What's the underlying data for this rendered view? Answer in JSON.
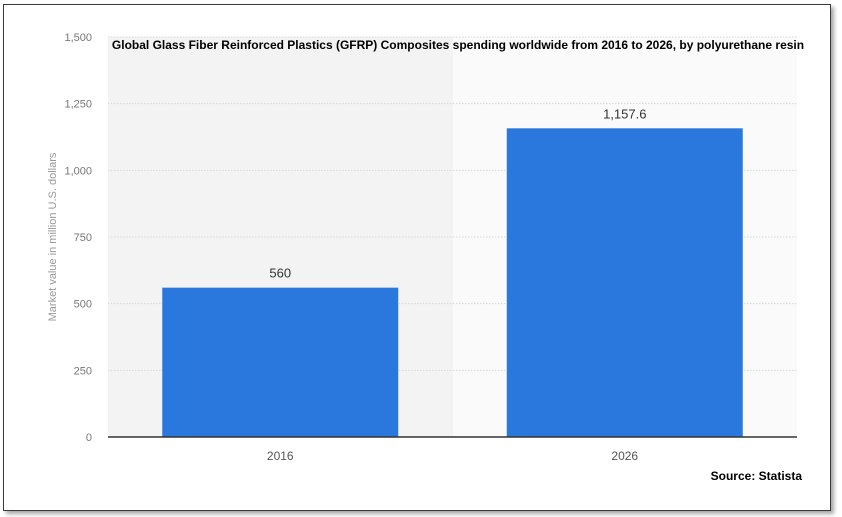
{
  "chart_data": {
    "type": "bar",
    "title": "Global Glass Fiber Reinforced Plastics (GFRP) Composites spending worldwide from 2016 to 2026, by polyurethane resin",
    "categories": [
      "2016",
      "2026"
    ],
    "values": [
      560,
      1157.6
    ],
    "value_labels": [
      "560",
      "1,157.6"
    ],
    "xlabel": "",
    "ylabel": "Market value in million U.S. dollars",
    "ylim": [
      0,
      1500
    ],
    "yticks": [
      0,
      250,
      500,
      750,
      1000,
      1250,
      1500
    ],
    "ytick_labels": [
      "0",
      "250",
      "500",
      "750",
      "1,000",
      "1,250",
      "1,500"
    ],
    "grid": true,
    "bar_color": "#2a78de",
    "source": "Source: Statista"
  }
}
